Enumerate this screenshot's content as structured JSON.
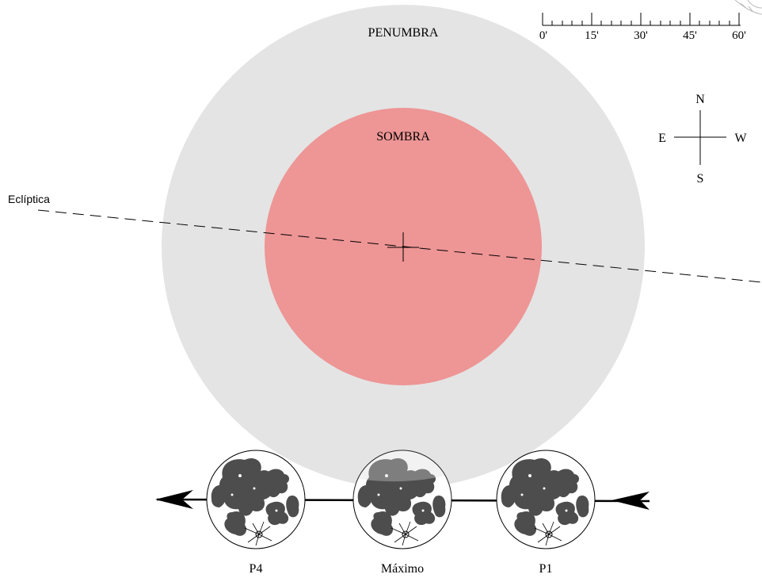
{
  "labels": {
    "penumbra": "PENUMBRA",
    "umbra": "SOMBRA",
    "ecliptic": "Eclíptica"
  },
  "compass": {
    "north": "N",
    "south": "S",
    "east": "E",
    "west": "W"
  },
  "scale": {
    "ticks": [
      "0'",
      "15'",
      "30'",
      "45'",
      "60'"
    ]
  },
  "moon_positions": [
    {
      "id": "p4",
      "label": "P4"
    },
    {
      "id": "max",
      "label": "Máximo"
    },
    {
      "id": "p1",
      "label": "P1"
    }
  ],
  "colors": {
    "penumbra": "#e4e4e4",
    "umbra": "#ee9595",
    "moon_surface": "#ffffff",
    "moon_maria": "#4d4d4d",
    "line": "#000000"
  }
}
